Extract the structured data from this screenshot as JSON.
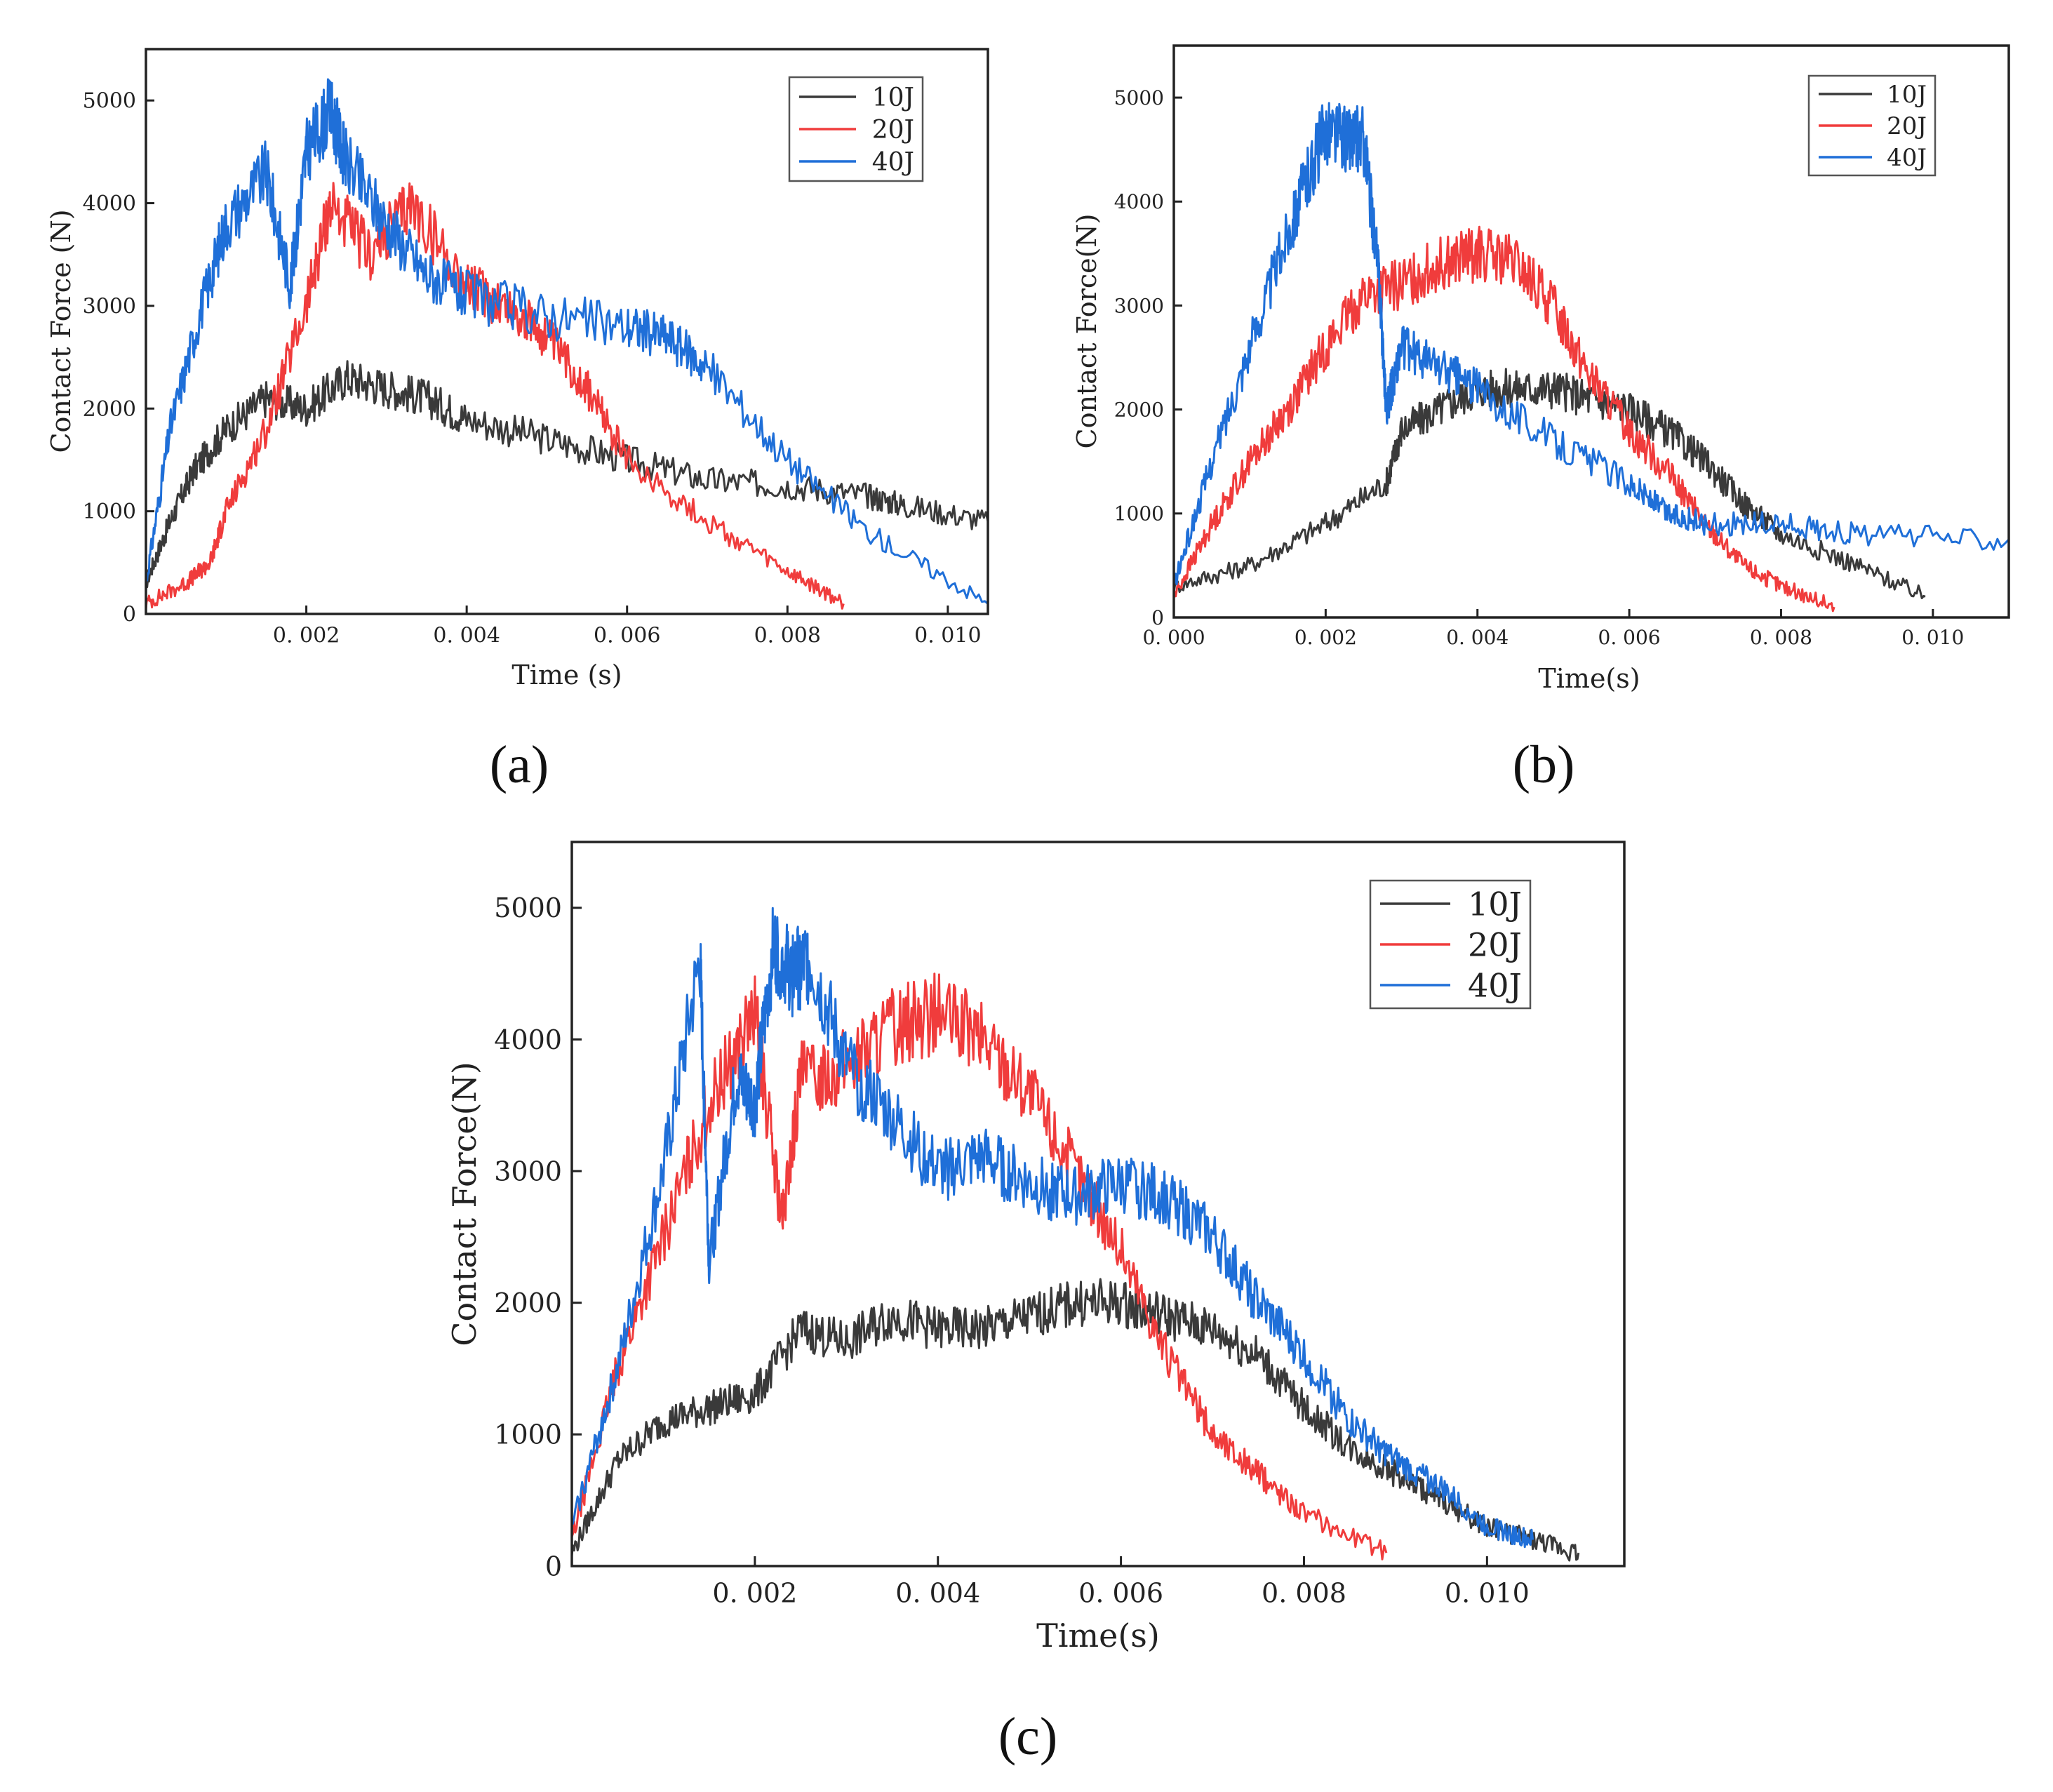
{
  "colors": {
    "10J": "#3a3a3a",
    "20J": "#f03c3c",
    "40J": "#1f6fd8"
  },
  "chart_data": [
    {
      "panel": "a",
      "caption": "(a)",
      "type": "line",
      "title": "",
      "xlabel": "Time (s)",
      "ylabel": "Contact Force (N)",
      "xlim": [
        0,
        0.0105
      ],
      "ylim": [
        0,
        5500
      ],
      "xticks": [
        0.002,
        0.004,
        0.006,
        0.008,
        0.01
      ],
      "xtick_labels": [
        "0. 002",
        "0. 004",
        "0. 006",
        "0. 008",
        "0. 010"
      ],
      "yticks": [
        0,
        1000,
        2000,
        3000,
        4000,
        5000
      ],
      "ytick_labels": [
        "0",
        "1000",
        "2000",
        "3000",
        "4000",
        "5000"
      ],
      "legend": [
        "10J",
        "20J",
        "40J"
      ],
      "legend_position": "top-right",
      "series": [
        {
          "name": "10J",
          "x": [
            0,
            0.0003,
            0.0006,
            0.001,
            0.0015,
            0.002,
            0.0025,
            0.003,
            0.0035,
            0.004,
            0.005,
            0.006,
            0.007,
            0.008,
            0.009,
            0.0095,
            0.0105
          ],
          "y": [
            300,
            900,
            1400,
            1800,
            2100,
            2000,
            2300,
            2200,
            2100,
            1900,
            1700,
            1500,
            1300,
            1250,
            1150,
            1050,
            900
          ]
        },
        {
          "name": "20J",
          "x": [
            0,
            0.0005,
            0.0008,
            0.001,
            0.0015,
            0.002,
            0.0023,
            0.0028,
            0.0033,
            0.004,
            0.0045,
            0.005,
            0.0055,
            0.006,
            0.007,
            0.008,
            0.0087
          ],
          "y": [
            100,
            300,
            500,
            1000,
            1800,
            3000,
            4000,
            3500,
            4000,
            3200,
            3000,
            2700,
            2200,
            1500,
            900,
            400,
            100
          ]
        },
        {
          "name": "40J",
          "x": [
            0,
            0.0003,
            0.0007,
            0.001,
            0.0015,
            0.0018,
            0.002,
            0.0023,
            0.0025,
            0.003,
            0.0035,
            0.004,
            0.005,
            0.006,
            0.0065,
            0.007,
            0.008,
            0.009,
            0.0105
          ],
          "y": [
            300,
            1800,
            3000,
            3800,
            4300,
            3200,
            4500,
            4900,
            4400,
            3800,
            3300,
            3100,
            2900,
            2800,
            2700,
            2400,
            1500,
            800,
            100
          ]
        }
      ]
    },
    {
      "panel": "b",
      "caption": "(b)",
      "type": "line",
      "title": "",
      "xlabel": "Time(s)",
      "ylabel": "Contact Force(N)",
      "xlim": [
        0,
        0.011
      ],
      "ylim": [
        0,
        5500
      ],
      "xticks": [
        0,
        0.002,
        0.004,
        0.006,
        0.008,
        0.01
      ],
      "xtick_labels": [
        "0. 000",
        "0. 002",
        "0. 004",
        "0. 006",
        "0. 008",
        "0. 010"
      ],
      "yticks": [
        0,
        1000,
        2000,
        3000,
        4000,
        5000
      ],
      "ytick_labels": [
        "0",
        "1000",
        "2000",
        "3000",
        "4000",
        "5000"
      ],
      "legend": [
        "10J",
        "20J",
        "40J"
      ],
      "legend_position": "top-right",
      "series": [
        {
          "name": "10J",
          "x": [
            0,
            0.001,
            0.002,
            0.0028,
            0.003,
            0.0035,
            0.004,
            0.0045,
            0.005,
            0.0055,
            0.006,
            0.0065,
            0.007,
            0.0075,
            0.008,
            0.009,
            0.0099
          ],
          "y": [
            300,
            500,
            900,
            1300,
            1800,
            2000,
            2200,
            2200,
            2200,
            2100,
            2000,
            1800,
            1500,
            1100,
            800,
            500,
            200
          ]
        },
        {
          "name": "20J",
          "x": [
            0,
            0.0005,
            0.001,
            0.0015,
            0.002,
            0.0025,
            0.003,
            0.0035,
            0.004,
            0.0045,
            0.005,
            0.0055,
            0.006,
            0.0065,
            0.007,
            0.0075,
            0.008,
            0.0087
          ],
          "y": [
            200,
            900,
            1500,
            2000,
            2600,
            3100,
            3200,
            3400,
            3500,
            3400,
            3000,
            2300,
            1800,
            1400,
            900,
            500,
            300,
            100
          ]
        },
        {
          "name": "40J",
          "x": [
            0,
            0.0005,
            0.001,
            0.0015,
            0.0018,
            0.002,
            0.0023,
            0.0025,
            0.0027,
            0.0028,
            0.003,
            0.0035,
            0.004,
            0.005,
            0.006,
            0.0065,
            0.007,
            0.008,
            0.009,
            0.011
          ],
          "y": [
            300,
            1500,
            2600,
            3700,
            4300,
            4700,
            4600,
            4600,
            3300,
            2000,
            2600,
            2400,
            2200,
            1700,
            1300,
            1000,
            900,
            900,
            800,
            750
          ]
        }
      ]
    },
    {
      "panel": "c",
      "caption": "(c)",
      "type": "line",
      "title": "",
      "xlabel": "Time(s)",
      "ylabel": "Contact Force(N)",
      "xlim": [
        0,
        0.0115
      ],
      "ylim": [
        0,
        5500
      ],
      "xticks": [
        0.002,
        0.004,
        0.006,
        0.008,
        0.01
      ],
      "xtick_labels": [
        "0. 002",
        "0. 004",
        "0. 006",
        "0. 008",
        "0. 010"
      ],
      "yticks": [
        0,
        1000,
        2000,
        3000,
        4000,
        5000
      ],
      "ytick_labels": [
        "0",
        "1000",
        "2000",
        "3000",
        "4000",
        "5000"
      ],
      "legend": [
        "10J",
        "20J",
        "40J"
      ],
      "legend_position": "top-right",
      "series": [
        {
          "name": "10J",
          "x": [
            0,
            0.0005,
            0.001,
            0.0015,
            0.002,
            0.0025,
            0.003,
            0.0035,
            0.004,
            0.0045,
            0.005,
            0.0055,
            0.006,
            0.0065,
            0.007,
            0.0075,
            0.008,
            0.0085,
            0.009,
            0.0095,
            0.01,
            0.0105,
            0.011
          ],
          "y": [
            100,
            800,
            1100,
            1200,
            1300,
            1800,
            1700,
            1900,
            1800,
            1800,
            1900,
            2000,
            2000,
            1900,
            1800,
            1600,
            1200,
            900,
            700,
            500,
            300,
            200,
            100
          ]
        },
        {
          "name": "20J",
          "x": [
            0,
            0.0005,
            0.001,
            0.0015,
            0.002,
            0.0023,
            0.0025,
            0.003,
            0.0035,
            0.004,
            0.0045,
            0.005,
            0.0055,
            0.006,
            0.0065,
            0.007,
            0.0075,
            0.008,
            0.0089
          ],
          "y": [
            200,
            1500,
            2500,
            3500,
            4200,
            2600,
            3700,
            3800,
            4100,
            4200,
            4000,
            3600,
            3000,
            2400,
            1600,
            1000,
            700,
            400,
            100
          ]
        },
        {
          "name": "40J",
          "x": [
            0,
            0.0005,
            0.001,
            0.0014,
            0.0015,
            0.0018,
            0.002,
            0.0022,
            0.0024,
            0.0026,
            0.003,
            0.0035,
            0.004,
            0.0045,
            0.005,
            0.0055,
            0.006,
            0.0065,
            0.007,
            0.0075,
            0.008,
            0.0085,
            0.009,
            0.0095,
            0.01,
            0.0105
          ],
          "y": [
            300,
            1500,
            3000,
            4600,
            2300,
            3700,
            3500,
            4700,
            4500,
            4600,
            3800,
            3400,
            3000,
            3100,
            2900,
            2800,
            2900,
            2800,
            2500,
            2000,
            1600,
            1100,
            800,
            600,
            300,
            200
          ]
        }
      ]
    }
  ]
}
